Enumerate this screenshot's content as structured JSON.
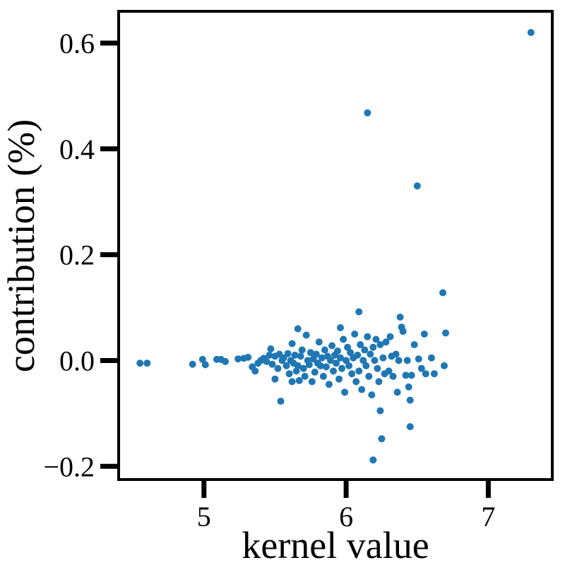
{
  "chart_data": {
    "type": "scatter",
    "title": "",
    "xlabel": "kernel value",
    "ylabel": "contribution (%)",
    "xlim": [
      4.4,
      7.45
    ],
    "ylim": [
      -0.225,
      0.66
    ],
    "x_ticks": [
      5,
      6,
      7
    ],
    "x_tick_labels": [
      "5",
      "6",
      "7"
    ],
    "y_ticks": [
      -0.2,
      0.0,
      0.2,
      0.4,
      0.6
    ],
    "y_tick_labels": [
      "−0.2",
      "0.0",
      "0.2",
      "0.4",
      "0.6"
    ],
    "grid": false,
    "legend": "none",
    "marker_color": "#1f77b4",
    "series": [
      {
        "points": [
          [
            4.55,
            -0.005
          ],
          [
            4.6,
            -0.005
          ],
          [
            4.92,
            -0.007
          ],
          [
            4.99,
            0.002
          ],
          [
            5.01,
            -0.008
          ],
          [
            5.09,
            0.002
          ],
          [
            5.12,
            0.002
          ],
          [
            5.15,
            -0.002
          ],
          [
            5.24,
            0.003
          ],
          [
            5.28,
            0.004
          ],
          [
            5.31,
            0.006
          ],
          [
            5.34,
            -0.012
          ],
          [
            5.36,
            -0.02
          ],
          [
            5.38,
            -0.005
          ],
          [
            5.4,
            0.0
          ],
          [
            5.42,
            0.004
          ],
          [
            5.44,
            -0.002
          ],
          [
            5.46,
            0.01
          ],
          [
            5.47,
            0.022
          ],
          [
            5.48,
            -0.007
          ],
          [
            5.5,
            -0.035
          ],
          [
            5.5,
            0.008
          ],
          [
            5.52,
            -0.015
          ],
          [
            5.53,
            0.012
          ],
          [
            5.54,
            -0.077
          ],
          [
            5.55,
            0.0
          ],
          [
            5.56,
            0.005
          ],
          [
            5.58,
            -0.01
          ],
          [
            5.59,
            0.013
          ],
          [
            5.6,
            -0.025
          ],
          [
            5.61,
            0.0
          ],
          [
            5.62,
            -0.04
          ],
          [
            5.62,
            0.032
          ],
          [
            5.63,
            -0.005
          ],
          [
            5.64,
            0.01
          ],
          [
            5.65,
            -0.02
          ],
          [
            5.66,
            0.06
          ],
          [
            5.66,
            -0.01
          ],
          [
            5.67,
            -0.038
          ],
          [
            5.68,
            0.008
          ],
          [
            5.69,
            0.02
          ],
          [
            5.7,
            -0.015
          ],
          [
            5.71,
            -0.03
          ],
          [
            5.72,
            0.048
          ],
          [
            5.73,
            0.0
          ],
          [
            5.74,
            -0.008
          ],
          [
            5.75,
            0.015
          ],
          [
            5.76,
            -0.04
          ],
          [
            5.77,
            0.003
          ],
          [
            5.78,
            -0.022
          ],
          [
            5.79,
            0.012
          ],
          [
            5.8,
            -0.005
          ],
          [
            5.81,
            0.035
          ],
          [
            5.82,
            -0.01
          ],
          [
            5.83,
            0.005
          ],
          [
            5.84,
            -0.03
          ],
          [
            5.85,
            0.02
          ],
          [
            5.86,
            -0.012
          ],
          [
            5.87,
            0.008
          ],
          [
            5.88,
            -0.045
          ],
          [
            5.89,
            0.0
          ],
          [
            5.9,
            0.028
          ],
          [
            5.91,
            -0.02
          ],
          [
            5.92,
            0.01
          ],
          [
            5.93,
            -0.005
          ],
          [
            5.94,
            0.018
          ],
          [
            5.95,
            -0.035
          ],
          [
            5.96,
            0.062
          ],
          [
            5.96,
            0.005
          ],
          [
            5.97,
            -0.015
          ],
          [
            5.98,
            0.04
          ],
          [
            5.99,
            -0.06
          ],
          [
            6.0,
            0.0
          ],
          [
            6.01,
            0.025
          ],
          [
            6.02,
            -0.01
          ],
          [
            6.03,
            0.015
          ],
          [
            6.04,
            -0.025
          ],
          [
            6.05,
            0.005
          ],
          [
            6.06,
            0.05
          ],
          [
            6.07,
            -0.04
          ],
          [
            6.08,
            0.01
          ],
          [
            6.09,
            0.092
          ],
          [
            6.09,
            -0.02
          ],
          [
            6.1,
            0.03
          ],
          [
            6.11,
            -0.055
          ],
          [
            6.12,
            0.0
          ],
          [
            6.13,
            0.02
          ],
          [
            6.14,
            -0.01
          ],
          [
            6.15,
            0.468
          ],
          [
            6.15,
            0.045
          ],
          [
            6.16,
            -0.03
          ],
          [
            6.17,
            0.012
          ],
          [
            6.18,
            -0.065
          ],
          [
            6.19,
            0.025
          ],
          [
            6.19,
            -0.188
          ],
          [
            6.2,
            0.0
          ],
          [
            6.21,
            0.04
          ],
          [
            6.22,
            -0.015
          ],
          [
            6.23,
            -0.04
          ],
          [
            6.24,
            -0.095
          ],
          [
            6.24,
            0.03
          ],
          [
            6.25,
            -0.148
          ],
          [
            6.26,
            0.005
          ],
          [
            6.27,
            -0.025
          ],
          [
            6.28,
            0.035
          ],
          [
            6.3,
            -0.02
          ],
          [
            6.31,
            0.045
          ],
          [
            6.32,
            0.008
          ],
          [
            6.33,
            -0.03
          ],
          [
            6.35,
            0.012
          ],
          [
            6.36,
            -0.06
          ],
          [
            6.37,
            0.0
          ],
          [
            6.38,
            0.082
          ],
          [
            6.39,
            0.063
          ],
          [
            6.4,
            0.055
          ],
          [
            6.42,
            -0.028
          ],
          [
            6.43,
            0.0
          ],
          [
            6.44,
            -0.05
          ],
          [
            6.45,
            -0.125
          ],
          [
            6.45,
            -0.075
          ],
          [
            6.46,
            -0.028
          ],
          [
            6.48,
            0.03
          ],
          [
            6.5,
            0.33
          ],
          [
            6.51,
            0.003
          ],
          [
            6.53,
            -0.015
          ],
          [
            6.55,
            0.05
          ],
          [
            6.56,
            -0.025
          ],
          [
            6.6,
            0.005
          ],
          [
            6.62,
            -0.025
          ],
          [
            6.68,
            0.128
          ],
          [
            6.69,
            -0.01
          ],
          [
            6.7,
            0.052
          ],
          [
            7.3,
            0.62
          ]
        ]
      }
    ]
  }
}
